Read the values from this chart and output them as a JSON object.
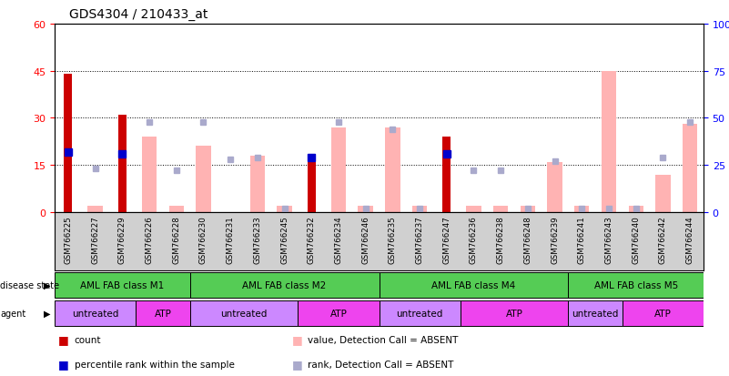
{
  "title": "GDS4304 / 210433_at",
  "samples": [
    "GSM766225",
    "GSM766227",
    "GSM766229",
    "GSM766226",
    "GSM766228",
    "GSM766230",
    "GSM766231",
    "GSM766233",
    "GSM766245",
    "GSM766232",
    "GSM766234",
    "GSM766246",
    "GSM766235",
    "GSM766237",
    "GSM766247",
    "GSM766236",
    "GSM766238",
    "GSM766248",
    "GSM766239",
    "GSM766241",
    "GSM766243",
    "GSM766240",
    "GSM766242",
    "GSM766244"
  ],
  "count_values": [
    44,
    0,
    31,
    0,
    0,
    0,
    0,
    0,
    0,
    16,
    0,
    0,
    0,
    0,
    24,
    0,
    0,
    0,
    0,
    0,
    0,
    0,
    0,
    0
  ],
  "value_absent": [
    0,
    2,
    0,
    24,
    2,
    21,
    0,
    18,
    2,
    0,
    27,
    2,
    27,
    2,
    0,
    2,
    2,
    2,
    16,
    2,
    45,
    2,
    12,
    28
  ],
  "rank_absent": [
    0,
    23,
    0,
    48,
    22,
    48,
    28,
    29,
    2,
    0,
    48,
    2,
    44,
    2,
    0,
    22,
    22,
    2,
    27,
    2,
    2,
    2,
    29,
    48
  ],
  "percentile_rank": [
    32,
    0,
    31,
    0,
    0,
    0,
    0,
    0,
    0,
    29,
    0,
    0,
    0,
    0,
    31,
    0,
    0,
    0,
    0,
    0,
    0,
    0,
    0,
    0
  ],
  "disease_state_groups": [
    {
      "label": "AML FAB class M1",
      "start": 0,
      "end": 5
    },
    {
      "label": "AML FAB class M2",
      "start": 5,
      "end": 12
    },
    {
      "label": "AML FAB class M4",
      "start": 12,
      "end": 19
    },
    {
      "label": "AML FAB class M5",
      "start": 19,
      "end": 24
    }
  ],
  "agent_groups": [
    {
      "label": "untreated",
      "start": 0,
      "end": 3,
      "color": "#cc88ff"
    },
    {
      "label": "ATP",
      "start": 3,
      "end": 5,
      "color": "#ee44ee"
    },
    {
      "label": "untreated",
      "start": 5,
      "end": 9,
      "color": "#cc88ff"
    },
    {
      "label": "ATP",
      "start": 9,
      "end": 12,
      "color": "#ee44ee"
    },
    {
      "label": "untreated",
      "start": 12,
      "end": 15,
      "color": "#cc88ff"
    },
    {
      "label": "ATP",
      "start": 15,
      "end": 19,
      "color": "#ee44ee"
    },
    {
      "label": "untreated",
      "start": 19,
      "end": 21,
      "color": "#cc88ff"
    },
    {
      "label": "ATP",
      "start": 21,
      "end": 24,
      "color": "#ee44ee"
    }
  ],
  "disease_state_color": "#55cc55",
  "xlim_left": -0.5,
  "xlim_right": 23.5,
  "ylim_left": [
    0,
    60
  ],
  "ylim_right": [
    0,
    100
  ],
  "left_yticks": [
    0,
    15,
    30,
    45,
    60
  ],
  "right_yticks": [
    0,
    25,
    50,
    75,
    100
  ],
  "left_color": "red",
  "right_color": "blue",
  "count_color": "#cc0000",
  "value_absent_color": "#ffb3b3",
  "rank_absent_color": "#aaaacc",
  "percentile_color": "#0000cc",
  "bar_width": 0.55,
  "legend_items": [
    {
      "label": "count",
      "color": "#cc0000"
    },
    {
      "label": "percentile rank within the sample",
      "color": "#0000cc"
    },
    {
      "label": "value, Detection Call = ABSENT",
      "color": "#ffb3b3"
    },
    {
      "label": "rank, Detection Call = ABSENT",
      "color": "#aaaacc"
    }
  ]
}
